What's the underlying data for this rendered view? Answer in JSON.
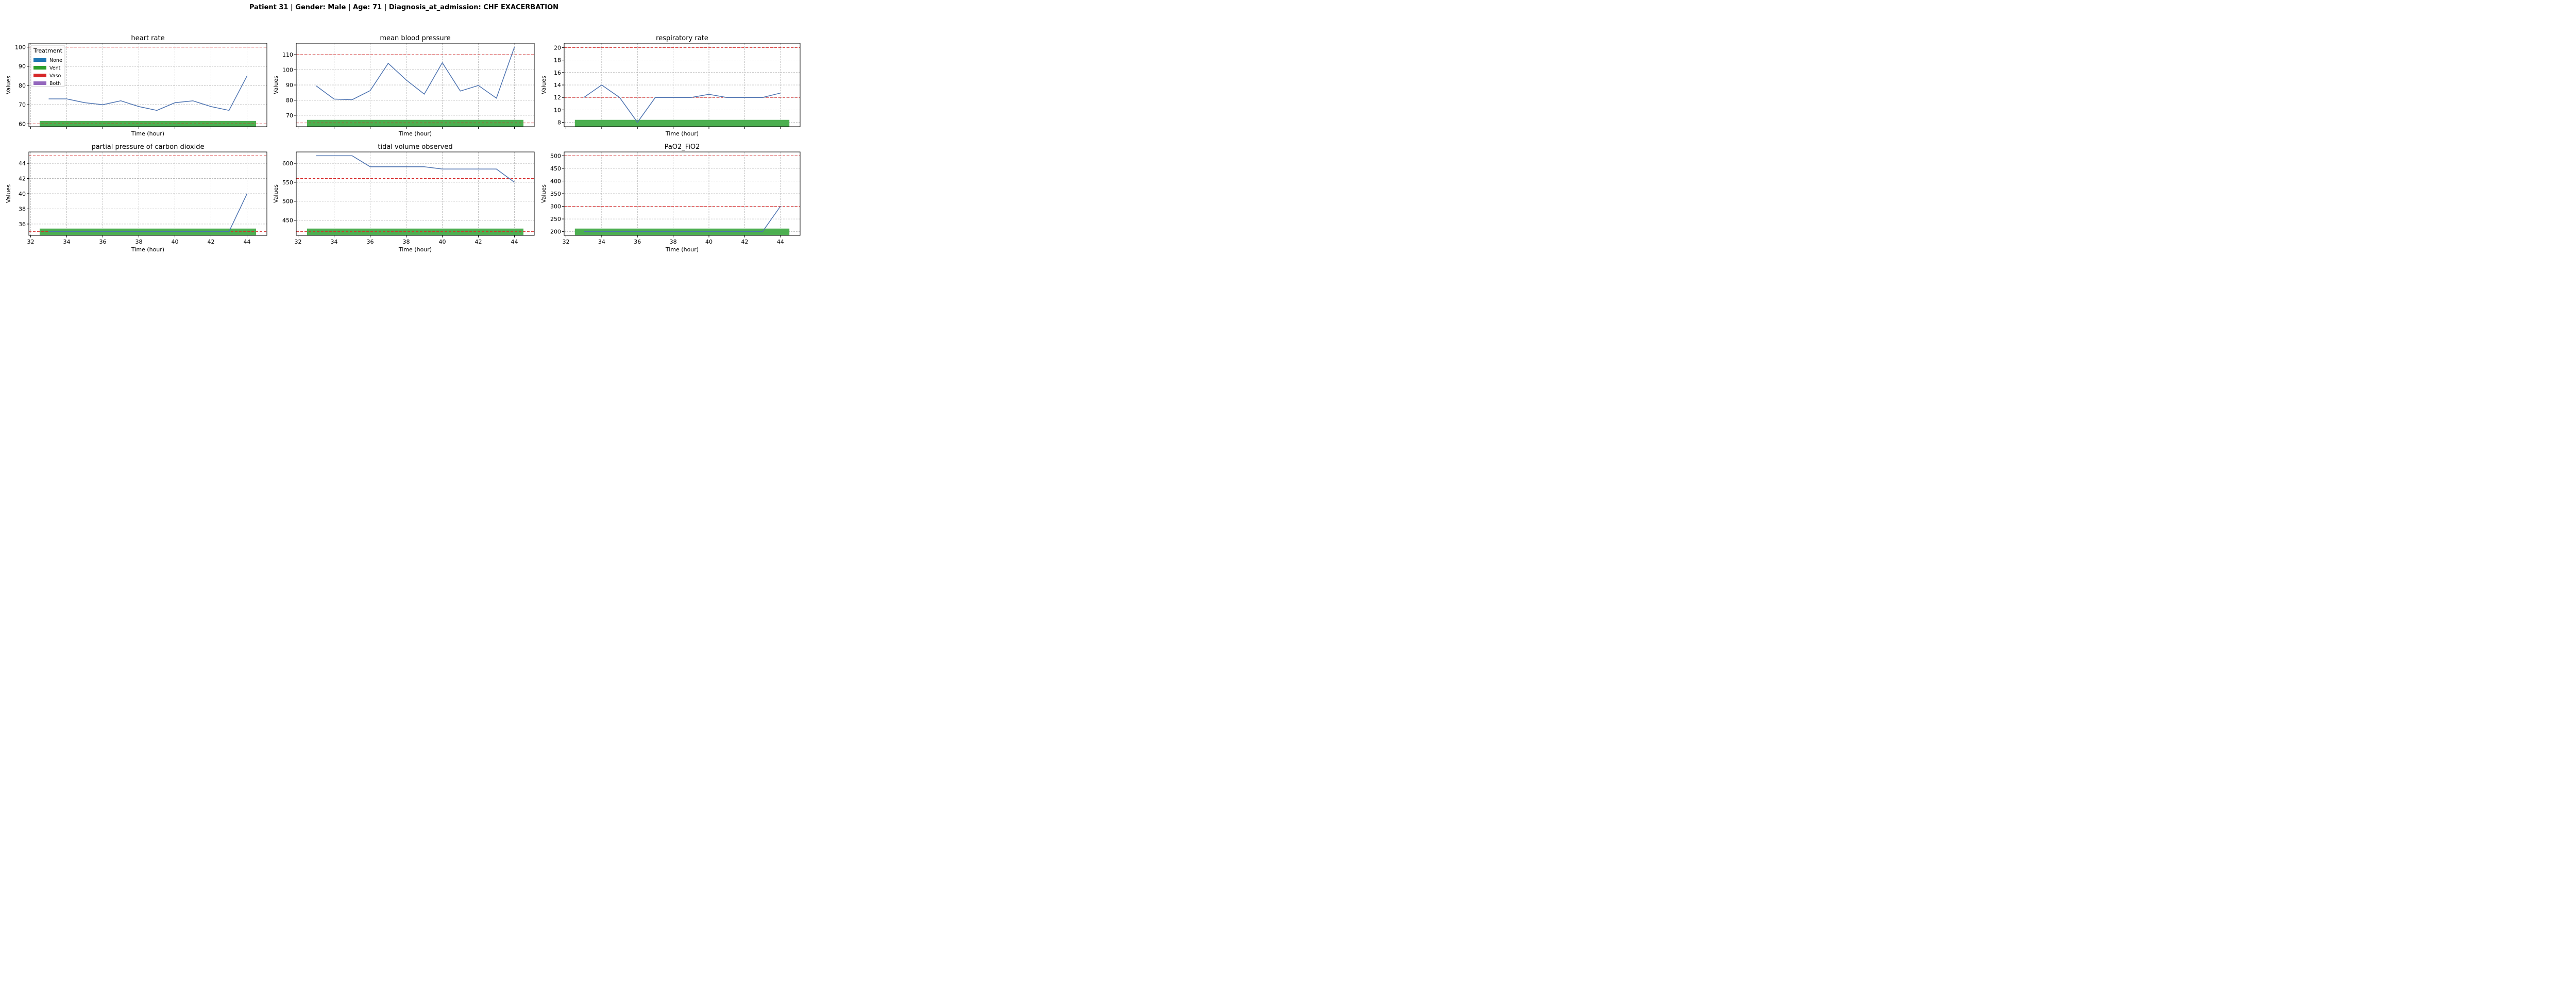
{
  "figure": {
    "title": "Patient 31 | Gender: Male | Age: 71 | Diagnosis_at_admission: CHF EXACERBATION"
  },
  "legend": {
    "title": "Treatment",
    "placement": "top-left of first panel",
    "items": [
      {
        "label": "None",
        "color": "#1f77b4"
      },
      {
        "label": "Vent",
        "color": "#2ca02c"
      },
      {
        "label": "Vaso",
        "color": "#d62728"
      },
      {
        "label": "Both",
        "color": "#9467bd"
      }
    ]
  },
  "style": {
    "line_color": "#4c72b0",
    "threshold_color": "#d62728",
    "treatment_bar_color": "#4caf50",
    "grid": true
  },
  "chart_data": [
    {
      "type": "line",
      "title": "heart rate",
      "xlabel": "Time (hour)",
      "ylabel": "Values",
      "xlim": [
        31.9,
        45.1
      ],
      "ylim": [
        58.5,
        102
      ],
      "xticks": [
        32,
        34,
        36,
        38,
        40,
        42,
        44
      ],
      "show_xtick_labels": false,
      "yticks": [
        60,
        70,
        80,
        90,
        100
      ],
      "x": [
        33,
        34,
        35,
        36,
        37,
        38,
        39,
        40,
        41,
        42,
        43,
        44
      ],
      "values": [
        73,
        73,
        71,
        70,
        72,
        69,
        67,
        71,
        72,
        69,
        67,
        85
      ],
      "thresholds": [
        60,
        100
      ],
      "treatment": {
        "label": "Vent",
        "x_start": 32.5,
        "x_end": 44.5,
        "y_from": 58.5,
        "y_to": 61.5
      }
    },
    {
      "type": "line",
      "title": "mean blood pressure",
      "xlabel": "Time (hour)",
      "ylabel": "Values",
      "xlim": [
        31.9,
        45.1
      ],
      "ylim": [
        62.5,
        117.5
      ],
      "xticks": [
        32,
        34,
        36,
        38,
        40,
        42,
        44
      ],
      "show_xtick_labels": false,
      "yticks": [
        70,
        80,
        90,
        100,
        110
      ],
      "x": [
        33,
        34,
        35,
        36,
        37,
        38,
        39,
        40,
        41,
        42,
        43,
        44
      ],
      "values": [
        89.5,
        80.7,
        80.3,
        86.3,
        104.3,
        93.3,
        84.0,
        104.7,
        86.0,
        89.7,
        81.3,
        115.0
      ],
      "thresholds": [
        65,
        110
      ],
      "treatment": {
        "label": "Vent",
        "x_start": 32.5,
        "x_end": 44.5,
        "y_from": 62.5,
        "y_to": 67.0
      }
    },
    {
      "type": "line",
      "title": "respiratory rate",
      "xlabel": "Time (hour)",
      "ylabel": "Values",
      "xlim": [
        31.9,
        45.1
      ],
      "ylim": [
        7.3,
        20.7
      ],
      "xticks": [
        32,
        34,
        36,
        38,
        40,
        42,
        44
      ],
      "show_xtick_labels": false,
      "yticks": [
        8,
        10,
        12,
        14,
        16,
        18,
        20
      ],
      "x": [
        33,
        34,
        35,
        36,
        37,
        38,
        39,
        40,
        41,
        42,
        43,
        44
      ],
      "values": [
        12,
        14,
        12,
        8,
        12,
        12,
        12,
        12.5,
        12,
        12,
        12,
        12.7
      ],
      "thresholds": [
        12,
        20
      ],
      "treatment": {
        "label": "Vent",
        "x_start": 32.5,
        "x_end": 44.5,
        "y_from": 7.3,
        "y_to": 8.4
      }
    },
    {
      "type": "line",
      "title": "partial pressure of carbon dioxide",
      "xlabel": "Time (hour)",
      "ylabel": "Values",
      "xlim": [
        31.9,
        45.1
      ],
      "ylim": [
        34.5,
        45.5
      ],
      "xticks": [
        32,
        34,
        36,
        38,
        40,
        42,
        44
      ],
      "show_xtick_labels": true,
      "yticks": [
        36,
        38,
        40,
        42,
        44
      ],
      "x": [
        33,
        34,
        35,
        36,
        37,
        38,
        39,
        40,
        41,
        42,
        43,
        44
      ],
      "values": [
        35,
        35,
        35,
        35,
        35,
        35,
        35,
        35,
        35,
        35,
        35,
        40
      ],
      "thresholds": [
        35,
        45
      ],
      "treatment": {
        "label": "Vent",
        "x_start": 32.5,
        "x_end": 44.5,
        "y_from": 34.5,
        "y_to": 35.4
      }
    },
    {
      "type": "line",
      "title": "tidal volume observed",
      "xlabel": "Time (hour)",
      "ylabel": "Values",
      "xlim": [
        31.9,
        45.1
      ],
      "ylim": [
        410,
        630
      ],
      "xticks": [
        32,
        34,
        36,
        38,
        40,
        42,
        44
      ],
      "show_xtick_labels": true,
      "yticks": [
        450,
        500,
        550,
        600
      ],
      "x": [
        33,
        34,
        35,
        36,
        37,
        38,
        39,
        40,
        41,
        42,
        43,
        44
      ],
      "values": [
        620,
        620,
        620,
        591,
        591,
        591,
        591,
        585,
        585,
        585,
        585,
        550
      ],
      "thresholds": [
        420,
        560
      ],
      "treatment": {
        "label": "Vent",
        "x_start": 32.5,
        "x_end": 44.5,
        "y_from": 410,
        "y_to": 428
      }
    },
    {
      "type": "line",
      "title": "PaO2_FiO2",
      "xlabel": "Time (hour)",
      "ylabel": "Values",
      "xlim": [
        31.9,
        45.1
      ],
      "ylim": [
        185,
        515
      ],
      "xticks": [
        32,
        34,
        36,
        38,
        40,
        42,
        44
      ],
      "show_xtick_labels": true,
      "yticks": [
        200,
        250,
        300,
        350,
        400,
        450,
        500
      ],
      "x": [
        33,
        34,
        35,
        36,
        37,
        38,
        39,
        40,
        41,
        42,
        43,
        44
      ],
      "values": [
        200,
        200,
        200,
        200,
        200,
        200,
        200,
        200,
        200,
        200,
        200,
        300
      ],
      "thresholds": [
        300,
        500
      ],
      "treatment": {
        "label": "Vent",
        "x_start": 32.5,
        "x_end": 44.5,
        "y_from": 185,
        "y_to": 212
      }
    }
  ]
}
